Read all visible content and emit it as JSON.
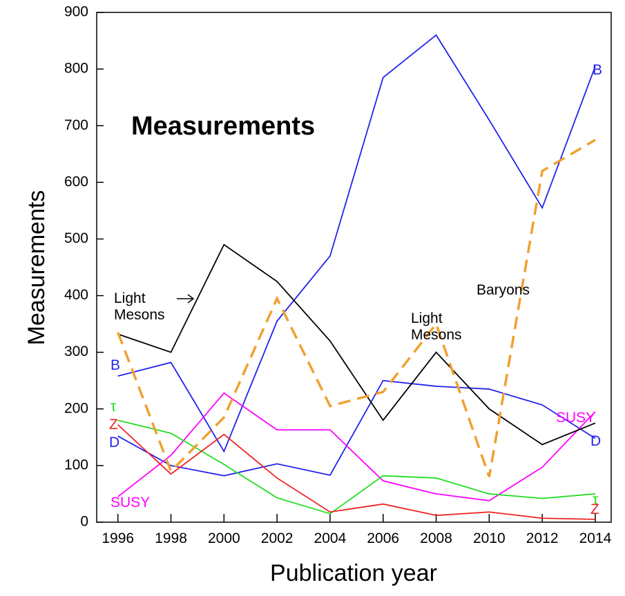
{
  "chart_data": {
    "type": "line",
    "title": "Measurements",
    "x_label": "Publication year",
    "y_label": "Measurements",
    "x": [
      1996,
      1998,
      2000,
      2002,
      2004,
      2006,
      2008,
      2010,
      2012,
      2014
    ],
    "series": [
      {
        "name": "B",
        "color": "#2222ee",
        "values": [
          258,
          282,
          125,
          355,
          470,
          785,
          860,
          710,
          555,
          805
        ]
      },
      {
        "name": "D",
        "color": "#2222ee",
        "values": [
          152,
          100,
          82,
          103,
          83,
          250,
          240,
          235,
          207,
          148
        ]
      },
      {
        "name": "SUSY",
        "color": "#ff00ff",
        "values": [
          45,
          118,
          228,
          163,
          163,
          73,
          50,
          38,
          97,
          195
        ]
      },
      {
        "name": "τ",
        "color": "#22dd22",
        "values": [
          180,
          157,
          102,
          43,
          15,
          82,
          78,
          50,
          42,
          50
        ]
      },
      {
        "name": "Z",
        "color": "#ee2222",
        "values": [
          172,
          85,
          155,
          78,
          18,
          32,
          12,
          18,
          7,
          5
        ]
      },
      {
        "name": "Light Mesons",
        "color": "#000000",
        "values": [
          332,
          300,
          490,
          425,
          320,
          180,
          300,
          200,
          137,
          175
        ]
      },
      {
        "name": "Baryons",
        "color": "#f0a030",
        "dashed": true,
        "values": [
          335,
          90,
          185,
          395,
          205,
          230,
          350,
          80,
          620,
          675
        ]
      }
    ],
    "xlim": [
      1995.2,
      2014.6
    ],
    "ylim": [
      0,
      900
    ],
    "xticks": [
      1996,
      1998,
      2000,
      2002,
      2004,
      2006,
      2008,
      2010,
      2012,
      2014
    ],
    "yticks": [
      0,
      100,
      200,
      300,
      400,
      500,
      600,
      700,
      800,
      900
    ]
  }
}
